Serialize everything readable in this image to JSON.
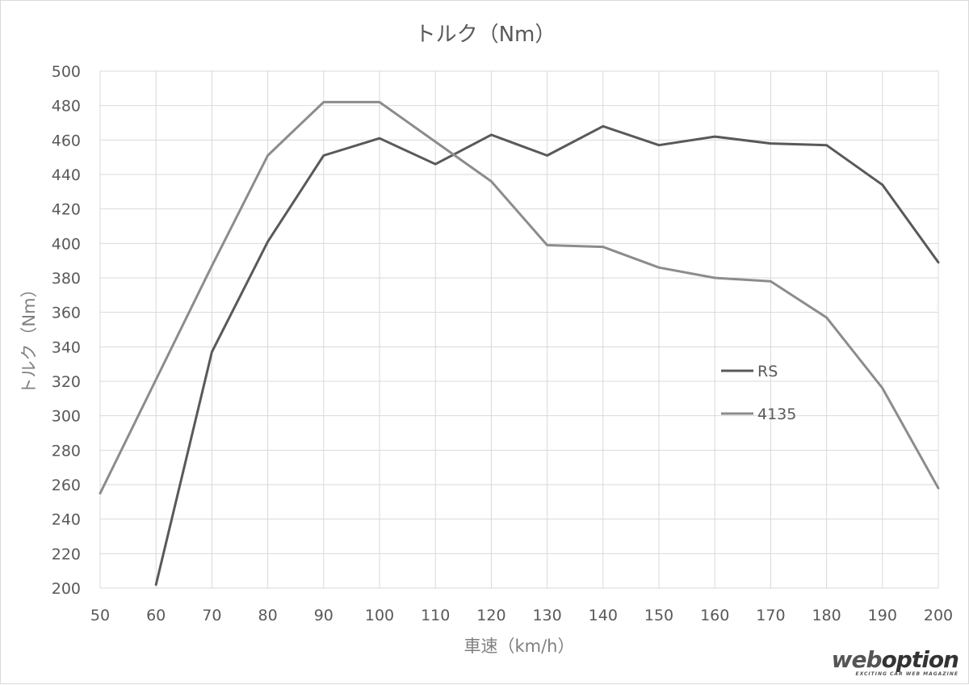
{
  "chart_data": {
    "type": "line",
    "title": "トルク（Nm）",
    "xlabel": "車速（km/h）",
    "ylabel": "トルク（Nm）",
    "x": [
      50,
      60,
      70,
      80,
      90,
      100,
      110,
      120,
      130,
      140,
      150,
      160,
      170,
      180,
      190,
      200
    ],
    "xlim": [
      50,
      200
    ],
    "ylim": [
      200,
      500
    ],
    "x_ticks": [
      50,
      60,
      70,
      80,
      90,
      100,
      110,
      120,
      130,
      140,
      150,
      160,
      170,
      180,
      190,
      200
    ],
    "y_ticks": [
      200,
      220,
      240,
      260,
      280,
      300,
      320,
      340,
      360,
      380,
      400,
      420,
      440,
      460,
      480,
      500
    ],
    "grid": true,
    "legend_position": "right-center",
    "series": [
      {
        "name": "RS",
        "color": "#595959",
        "x": [
          60,
          70,
          80,
          90,
          100,
          110,
          120,
          130,
          140,
          150,
          160,
          170,
          180,
          190,
          200
        ],
        "values": [
          202,
          337,
          401,
          451,
          461,
          446,
          463,
          451,
          468,
          457,
          462,
          458,
          457,
          434,
          389
        ]
      },
      {
        "name": "4135",
        "color": "#8c8c8c",
        "x": [
          50,
          60,
          70,
          80,
          90,
          100,
          110,
          120,
          130,
          140,
          150,
          160,
          170,
          180,
          190,
          200
        ],
        "values": [
          255,
          321,
          387,
          451,
          482,
          482,
          459,
          436,
          399,
          398,
          386,
          380,
          378,
          357,
          316,
          258
        ]
      }
    ]
  },
  "watermark": {
    "text_web": "web",
    "text_option": "option",
    "tagline": "EXCITING CAR WEB MAGAZINE"
  }
}
